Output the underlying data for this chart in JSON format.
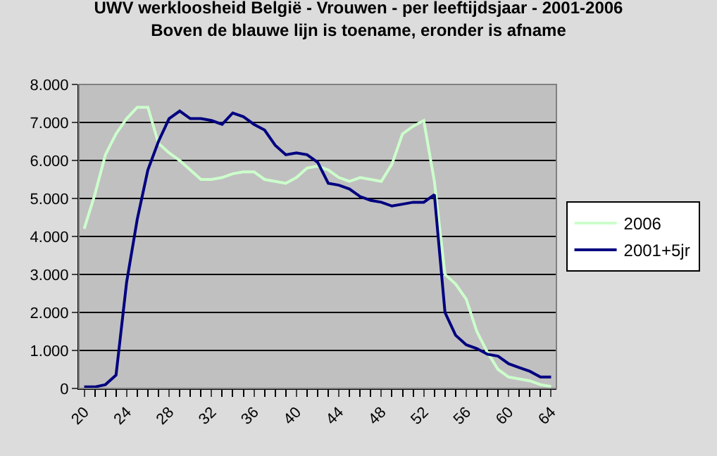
{
  "chart_data": {
    "type": "line",
    "title": "UWV werkloosheid België - Vrouwen - per leeftijdsjaar - 2001-2006",
    "subtitle": "Boven de blauwe lijn is toename, eronder is afname",
    "categories": [
      "20",
      null,
      null,
      null,
      "24",
      null,
      null,
      null,
      "28",
      null,
      null,
      null,
      "32",
      null,
      null,
      null,
      "36",
      null,
      null,
      null,
      "40",
      null,
      null,
      null,
      "44",
      null,
      null,
      null,
      "48",
      null,
      null,
      null,
      "52",
      null,
      null,
      null,
      "56",
      null,
      null,
      null,
      "60",
      null,
      null,
      null,
      "64"
    ],
    "series": [
      {
        "name": "2006",
        "color": "#ccffcc",
        "values": [
          4200,
          5100,
          6150,
          6700,
          7100,
          7400,
          7400,
          6450,
          6200,
          6000,
          5750,
          5500,
          5500,
          5550,
          5650,
          5700,
          5700,
          5500,
          5450,
          5400,
          5550,
          5800,
          5850,
          5750,
          5550,
          5450,
          5550,
          5500,
          5450,
          5900,
          6700,
          6900,
          7050,
          5450,
          3000,
          2750,
          2350,
          1500,
          950,
          500,
          300,
          250,
          200,
          100,
          50
        ]
      },
      {
        "name": "2001+5jr",
        "color": "#000080",
        "values": [
          40,
          40,
          100,
          350,
          2800,
          4450,
          5750,
          6500,
          7100,
          7300,
          7100,
          7100,
          7050,
          6950,
          7250,
          7150,
          6950,
          6800,
          6400,
          6150,
          6200,
          6150,
          5950,
          5400,
          5350,
          5250,
          5050,
          4950,
          4900,
          4800,
          4850,
          4900,
          4900,
          5100,
          2000,
          1400,
          1150,
          1050,
          900,
          850,
          650,
          550,
          450,
          300,
          300
        ]
      }
    ],
    "ylim": [
      0,
      8000
    ],
    "yticks": [
      0,
      {
        "value": 1000,
        "label": "1.000"
      },
      {
        "value": 2000,
        "label": "2.000"
      },
      {
        "value": 3000,
        "label": "3.000"
      },
      {
        "value": 4000,
        "label": "4.000"
      },
      {
        "value": 5000,
        "label": "5.000"
      },
      {
        "value": 6000,
        "label": "6.000"
      },
      {
        "value": 7000,
        "label": "7.000"
      },
      {
        "value": 8000,
        "label": "8.000"
      }
    ],
    "grid": "y",
    "legend": "right",
    "marker": "none",
    "line_style": "solid"
  }
}
